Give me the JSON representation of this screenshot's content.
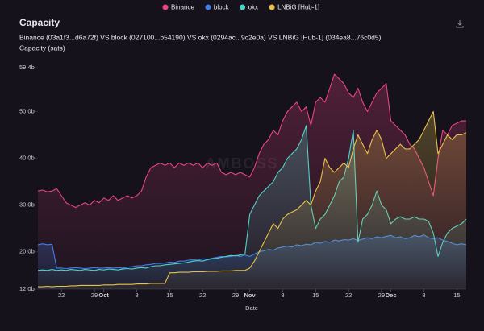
{
  "chart_data": {
    "type": "line",
    "title": "Capacity",
    "subtitle": "Binance (03a1f3...d6a72f) VS block (027100...b54190) VS okx (0294ac...9c2e0a) VS LNBiG [Hub-1] (034ea8...76c0d5)",
    "y_label": "Capacity (sats)",
    "x_label": "Date",
    "watermark": "AMBOSS",
    "categories": [
      null,
      null,
      null,
      null,
      null,
      "22",
      null,
      null,
      null,
      null,
      null,
      null,
      "29",
      null,
      "Oct",
      null,
      null,
      null,
      null,
      null,
      null,
      "8",
      null,
      null,
      null,
      null,
      null,
      null,
      "15",
      null,
      null,
      null,
      null,
      null,
      null,
      "22",
      null,
      null,
      null,
      null,
      null,
      null,
      "29",
      null,
      null,
      "Nov",
      null,
      null,
      null,
      null,
      null,
      null,
      "8",
      null,
      null,
      null,
      null,
      null,
      null,
      "15",
      null,
      null,
      null,
      null,
      null,
      null,
      "22",
      null,
      null,
      null,
      null,
      null,
      null,
      "29",
      null,
      "Dec",
      null,
      null,
      null,
      null,
      null,
      null,
      "8",
      null,
      null,
      null,
      null,
      null,
      null,
      "15",
      null,
      null
    ],
    "ylim": [
      12,
      59.4
    ],
    "yticks": [
      {
        "value": 12,
        "label": "12.0b"
      },
      {
        "value": 20,
        "label": "20.0b"
      },
      {
        "value": 30,
        "label": "30.0b"
      },
      {
        "value": 40,
        "label": "40.0b"
      },
      {
        "value": 50,
        "label": "50.0b"
      },
      {
        "value": 59.4,
        "label": "59.4b"
      }
    ],
    "series": [
      {
        "name": "Binance",
        "color": "#e8457f",
        "values": [
          33,
          33.2,
          32.8,
          33,
          33.5,
          32,
          30.5,
          30,
          29.5,
          30,
          30.5,
          30,
          31,
          30.5,
          31.5,
          31,
          32,
          31,
          31.5,
          32,
          31.5,
          32,
          33,
          36,
          38,
          38.5,
          39,
          38.5,
          39,
          38,
          39,
          38.5,
          39,
          38.5,
          39,
          38,
          39,
          38.5,
          39,
          37,
          36.5,
          37,
          36.5,
          37,
          36.5,
          36,
          38,
          41,
          43,
          44,
          46,
          45,
          48,
          50,
          51,
          52,
          50,
          51,
          47,
          52,
          53,
          52,
          55,
          58,
          57,
          56,
          54,
          53,
          55,
          52,
          50,
          52,
          54,
          55,
          56,
          48,
          47,
          46,
          45,
          43,
          42,
          40,
          38,
          35,
          32,
          40,
          46,
          45,
          47,
          47.5,
          48,
          48
        ]
      },
      {
        "name": "block",
        "color": "#3f7fe8",
        "values": [
          21.5,
          21.7,
          21.5,
          21.6,
          16.5,
          16.5,
          16.4,
          16.5,
          16.6,
          16.5,
          16.4,
          16.5,
          16.6,
          16.5,
          16.5,
          16.6,
          16.5,
          16.6,
          16.5,
          16.7,
          16.8,
          17,
          17,
          17.2,
          17.3,
          17.5,
          17.5,
          17.6,
          17.8,
          17.7,
          18,
          18,
          18.2,
          18.3,
          18.2,
          18.5,
          18.4,
          18.6,
          18.8,
          19,
          18.9,
          19,
          19.2,
          19,
          19.3,
          19,
          19.5,
          20,
          20.2,
          20.5,
          20.3,
          20.8,
          21,
          21.2,
          21,
          21.5,
          21.3,
          21.6,
          21.5,
          22,
          21.8,
          22.2,
          22,
          22.5,
          22.3,
          22.6,
          22.5,
          22.8,
          22.4,
          22.7,
          23,
          22.8,
          23.2,
          23,
          23.3,
          23.5,
          23,
          23.2,
          22.8,
          23,
          23.5,
          23.2,
          23.6,
          23,
          22.8,
          23,
          22.5,
          22.2,
          21.8,
          21.5,
          21.7,
          21.5
        ]
      },
      {
        "name": "okx",
        "color": "#4fd1c5",
        "values": [
          16,
          16.1,
          16,
          16.2,
          16,
          16.1,
          16,
          16.2,
          16.1,
          16,
          16.2,
          16.1,
          16,
          16.2,
          16.1,
          16.3,
          16.2,
          16.1,
          16.3,
          16.4,
          16.3,
          16.5,
          16.6,
          16.5,
          16.8,
          17,
          17,
          17.2,
          17.3,
          17.4,
          17.5,
          17.6,
          17.8,
          18,
          18.1,
          18,
          18.3,
          18.5,
          18.6,
          18.8,
          19,
          19.2,
          19.1,
          19.3,
          19.5,
          28,
          30,
          32,
          33,
          34,
          35,
          37,
          38,
          40,
          41,
          42,
          44,
          47,
          30,
          25,
          27,
          28,
          30,
          32,
          35,
          36,
          40,
          46,
          22,
          27,
          28,
          30,
          33,
          30,
          29,
          26,
          27,
          27.5,
          27,
          27,
          27.5,
          27,
          27,
          26.5,
          24,
          19,
          22,
          24,
          25,
          25.5,
          26,
          27
        ]
      },
      {
        "name": "LNBiG [Hub-1]",
        "color": "#e8c24a",
        "values": [
          12.5,
          12.5,
          12.6,
          12.5,
          12.6,
          12.6,
          12.6,
          12.7,
          12.7,
          12.8,
          12.8,
          12.8,
          12.8,
          12.8,
          12.9,
          12.9,
          12.9,
          13,
          13,
          13,
          13,
          13.1,
          13.1,
          13.1,
          13.2,
          13.2,
          13.2,
          13.2,
          15.5,
          15.5,
          15.6,
          15.6,
          15.6,
          15.7,
          15.7,
          15.7,
          15.8,
          15.8,
          15.8,
          15.9,
          15.9,
          15.9,
          16,
          16,
          16,
          16.5,
          18,
          20,
          22,
          24,
          26,
          25,
          27,
          28,
          28.5,
          29,
          30,
          31,
          30,
          33,
          35,
          40,
          38,
          37,
          38,
          39,
          38,
          42,
          45,
          43,
          41,
          44,
          46,
          44,
          40,
          41,
          42,
          43,
          42,
          42,
          43,
          44,
          46,
          48,
          50,
          41,
          43,
          45,
          44,
          45,
          45,
          45.5
        ]
      }
    ]
  }
}
